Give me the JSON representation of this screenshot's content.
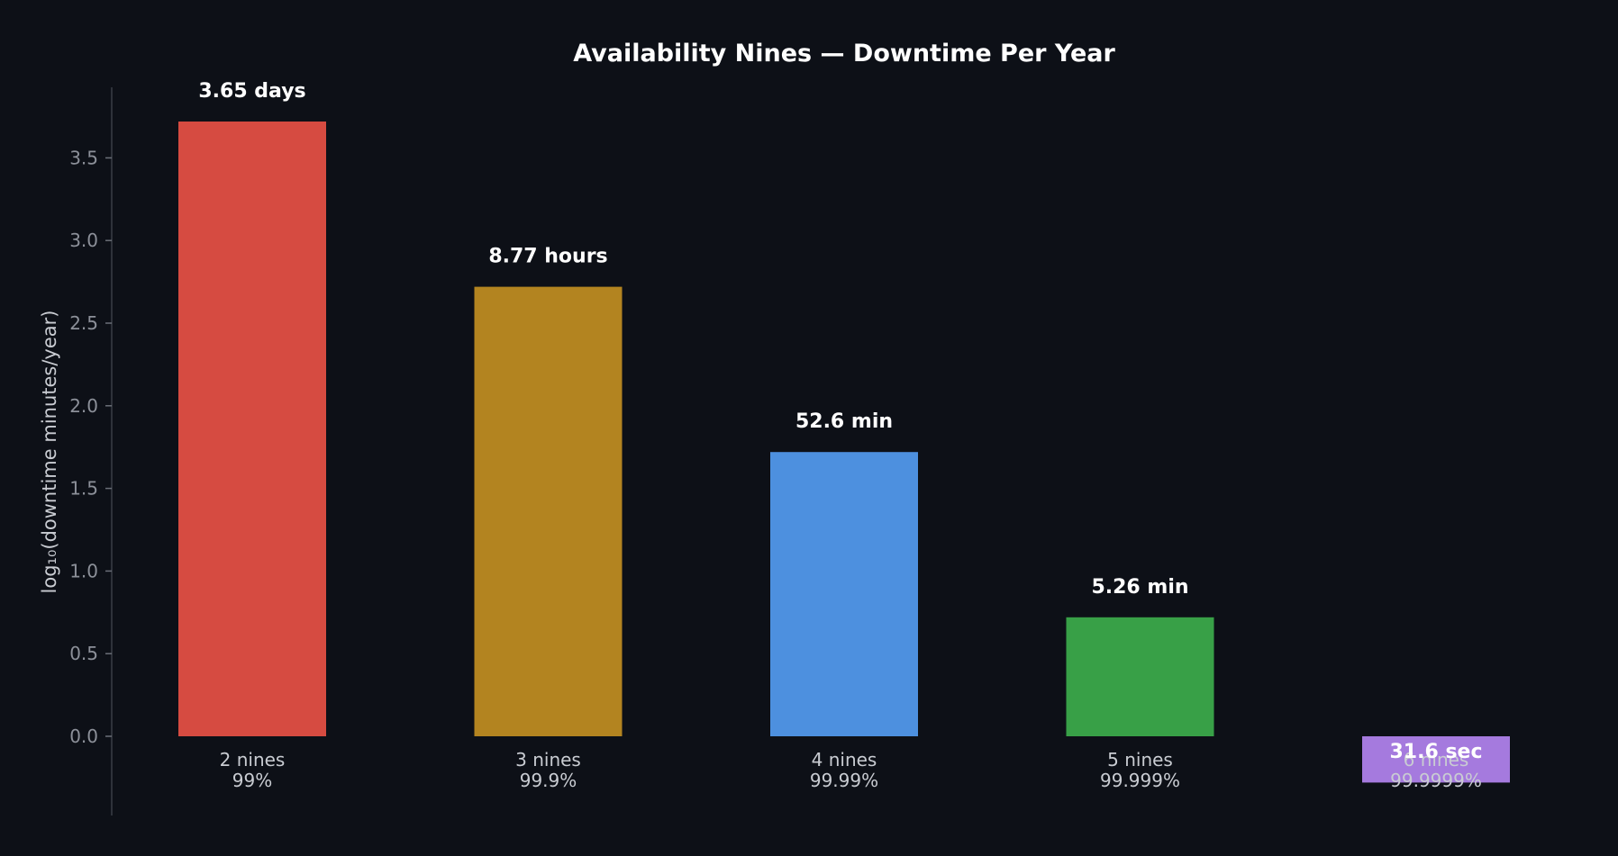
{
  "chart_data": {
    "type": "bar",
    "title": "Availability Nines — Downtime Per Year",
    "ylabel": "log₁₀(downtime minutes/year)",
    "xlabel": "",
    "ylim": [
      -0.48,
      3.92
    ],
    "yticks": [
      "0.0",
      "0.5",
      "1.0",
      "1.5",
      "2.0",
      "2.5",
      "3.0",
      "3.5"
    ],
    "grid": false,
    "categories": [
      {
        "name": "2 nines",
        "pct": "99%"
      },
      {
        "name": "3 nines",
        "pct": "99.9%"
      },
      {
        "name": "4 nines",
        "pct": "99.99%"
      },
      {
        "name": "5 nines",
        "pct": "99.999%"
      },
      {
        "name": "6 nines",
        "pct": "99.9999%"
      }
    ],
    "values": [
      3.72,
      2.72,
      1.72,
      0.72,
      -0.28
    ],
    "data_labels": [
      "3.65 days",
      "8.77 hours",
      "52.6 min",
      "5.26 min",
      "31.6 sec"
    ],
    "colors": [
      "#d64b41",
      "#b38420",
      "#4d90df",
      "#38a047",
      "#a57ade"
    ]
  }
}
